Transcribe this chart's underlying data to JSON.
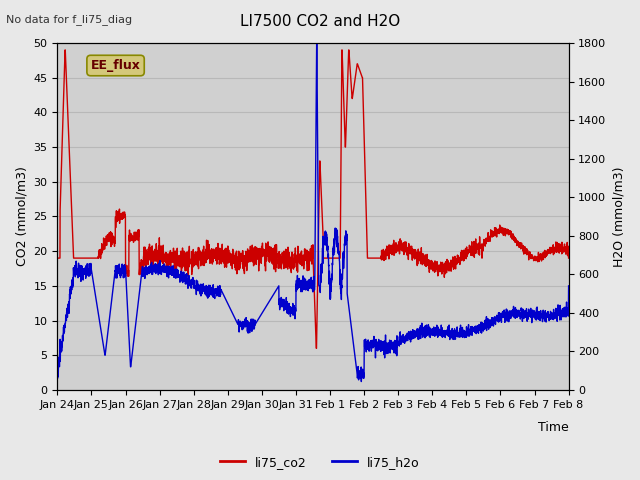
{
  "title": "LI7500 CO2 and H2O",
  "top_left_text": "No data for f_li75_diag",
  "xlabel": "Time",
  "ylabel_left": "CO2 (mmol/m3)",
  "ylabel_right": "H2O (mmol/m3)",
  "ylim_left": [
    0,
    50
  ],
  "ylim_right": [
    0,
    1800
  ],
  "background_color": "#e8e8e8",
  "plot_bg_color": "#d0d0d0",
  "co2_color": "#cc0000",
  "h2o_color": "#0000cc",
  "legend_label_co2": "li75_co2",
  "legend_label_h2o": "li75_h2o",
  "ee_flux_label": "EE_flux",
  "ee_flux_bg": "#d4c87a",
  "ee_flux_border": "#888800",
  "x_tick_labels": [
    "Jan 24",
    "Jan 25",
    "Jan 26",
    "Jan 27",
    "Jan 28",
    "Jan 29",
    "Jan 30",
    "Jan 31",
    "Feb 1",
    "Feb 2",
    "Feb 3",
    "Feb 4",
    "Feb 5",
    "Feb 6",
    "Feb 7",
    "Feb 8"
  ],
  "x_tick_positions": [
    0,
    1,
    2,
    3,
    4,
    5,
    6,
    7,
    8,
    9,
    10,
    11,
    12,
    13,
    14,
    15
  ],
  "n_points": 3000
}
